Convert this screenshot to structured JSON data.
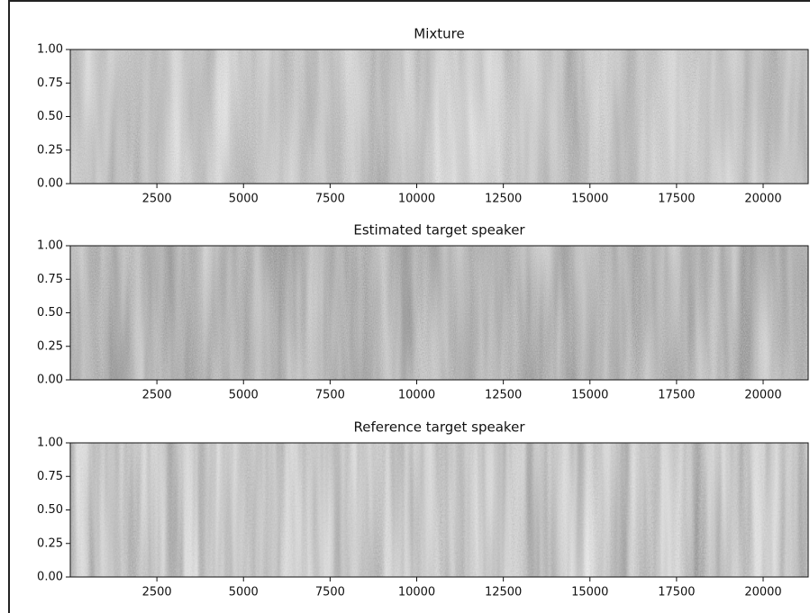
{
  "chart_data": [
    {
      "type": "spectrogram",
      "title": "Mixture",
      "xlim": [
        0,
        21300
      ],
      "xticks": [
        2500,
        5000,
        7500,
        10000,
        12500,
        15000,
        17500,
        20000
      ],
      "ylim": [
        0,
        1
      ],
      "yticks": [
        {
          "value": 0,
          "label": "0.00"
        },
        0.25,
        {
          "value": 0.5,
          "label": "0.50"
        },
        0.75,
        {
          "value": 1,
          "label": "1.00"
        }
      ]
    },
    {
      "type": "spectrogram",
      "title": "Estimated target speaker",
      "xlim": [
        0,
        21300
      ],
      "xticks": [
        2500,
        5000,
        7500,
        10000,
        12500,
        15000,
        17500,
        20000
      ],
      "ylim": [
        0,
        1
      ],
      "yticks": [
        {
          "value": 0,
          "label": "0.00"
        },
        0.25,
        {
          "value": 0.5,
          "label": "0.50"
        },
        0.75,
        {
          "value": 1,
          "label": "1.00"
        }
      ]
    },
    {
      "type": "spectrogram",
      "title": "Reference target speaker",
      "xlim": [
        0,
        21300
      ],
      "xticks": [
        2500,
        5000,
        7500,
        10000,
        12500,
        15000,
        17500,
        20000
      ],
      "ylim": [
        0,
        1
      ],
      "yticks": [
        {
          "value": 0,
          "label": "0.00"
        },
        0.25,
        {
          "value": 0.5,
          "label": "0.50"
        },
        0.75,
        {
          "value": 1,
          "label": "1.00"
        }
      ]
    }
  ]
}
